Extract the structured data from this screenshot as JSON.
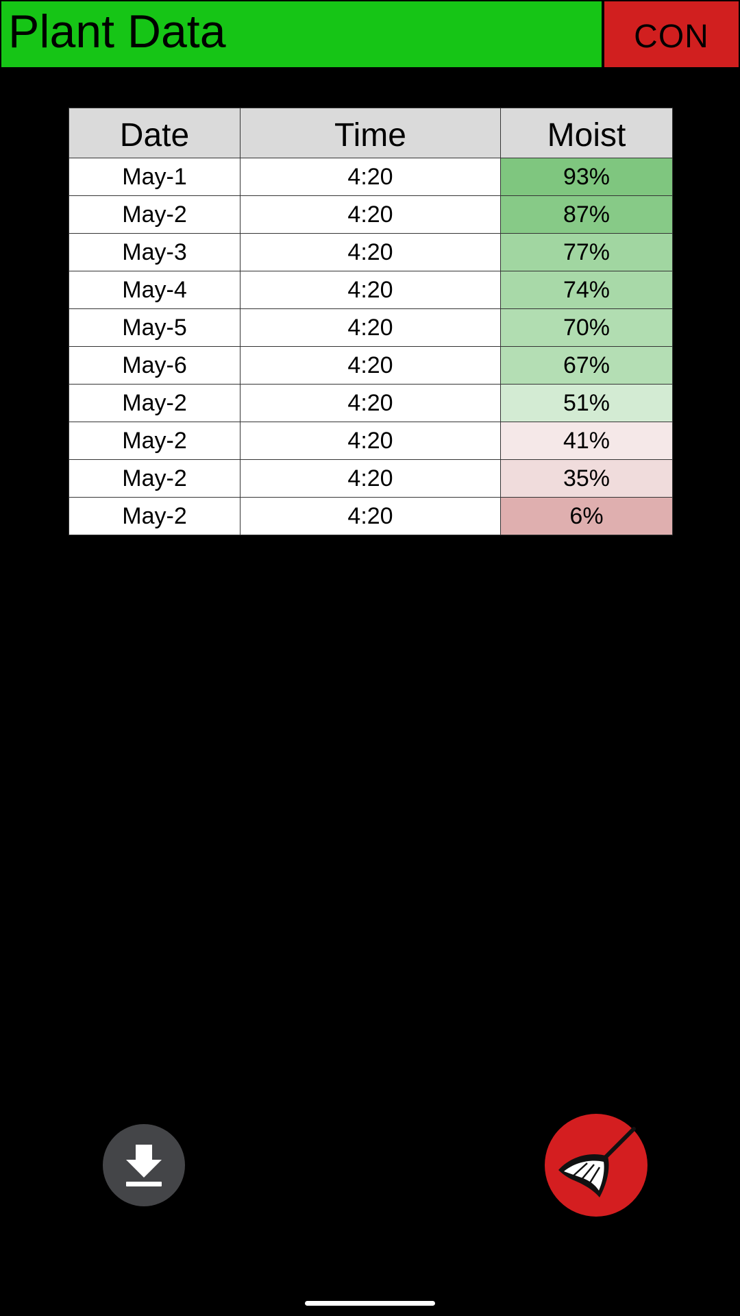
{
  "header": {
    "title": "Plant Data",
    "connect_label": "CON",
    "title_bg": "#16c516",
    "connect_bg": "#d11f1f"
  },
  "table": {
    "headers": [
      "Date",
      "Time",
      "Moist"
    ],
    "rows": [
      {
        "date": "May-1",
        "time": "4:20",
        "moist": "93%",
        "moist_color": "#7fc67f"
      },
      {
        "date": "May-2",
        "time": "4:20",
        "moist": "87%",
        "moist_color": "#87ca87"
      },
      {
        "date": "May-3",
        "time": "4:20",
        "moist": "77%",
        "moist_color": "#a1d6a1"
      },
      {
        "date": "May-4",
        "time": "4:20",
        "moist": "74%",
        "moist_color": "#a8d9a8"
      },
      {
        "date": "May-5",
        "time": "4:20",
        "moist": "70%",
        "moist_color": "#b1ddb1"
      },
      {
        "date": "May-6",
        "time": "4:20",
        "moist": "67%",
        "moist_color": "#b4deb4"
      },
      {
        "date": "May-2",
        "time": "4:20",
        "moist": "51%",
        "moist_color": "#d3ebd3"
      },
      {
        "date": "May-2",
        "time": "4:20",
        "moist": "41%",
        "moist_color": "#f5e8e8"
      },
      {
        "date": "May-2",
        "time": "4:20",
        "moist": "35%",
        "moist_color": "#f0dcdc"
      },
      {
        "date": "May-2",
        "time": "4:20",
        "moist": "6%",
        "moist_color": "#dfafaf"
      }
    ]
  },
  "actions": {
    "download_icon": "download-icon",
    "clean_icon": "broom-icon",
    "download_bg": "#444548",
    "clean_bg": "#d41e20"
  }
}
